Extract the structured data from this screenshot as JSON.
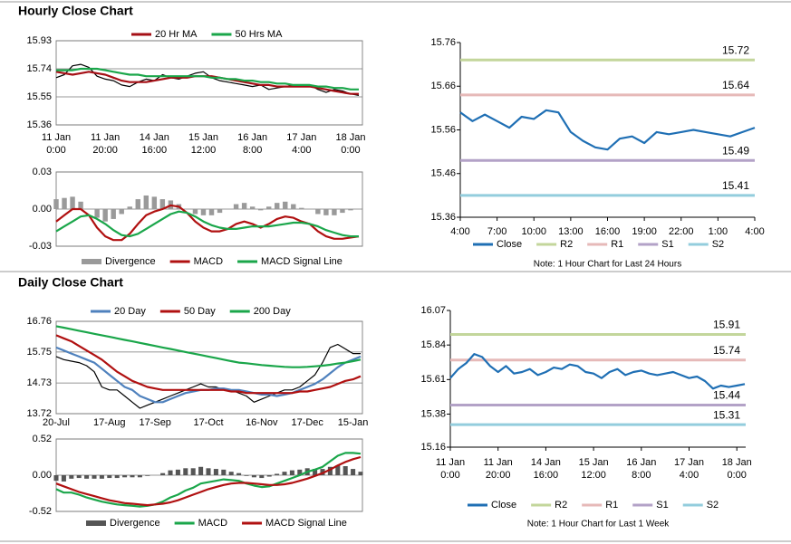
{
  "headings": [
    "Hourly Close Chart",
    "Daily Close Chart"
  ],
  "chart_data": [
    {
      "type": "line",
      "legend": "top",
      "grid": true,
      "categories": [
        [
          "11 Jan",
          "0:00"
        ],
        null,
        null,
        null,
        null,
        null,
        [
          "11 Jan",
          "20:00"
        ],
        null,
        null,
        null,
        null,
        null,
        [
          "14 Jan",
          "16:00"
        ],
        null,
        null,
        null,
        null,
        null,
        [
          "15 Jan",
          "12:00"
        ],
        null,
        null,
        null,
        null,
        null,
        [
          "16 Jan",
          "8:00"
        ],
        null,
        null,
        null,
        null,
        null,
        [
          "17 Jan",
          "4:00"
        ],
        null,
        null,
        null,
        null,
        null,
        [
          "18 Jan",
          "0:00"
        ],
        null
      ],
      "ylim": [
        15.36,
        15.93
      ],
      "yticks": [
        15.36,
        15.55,
        15.74,
        15.93
      ],
      "series": [
        {
          "color": "#000000",
          "kind": "line",
          "values": [
            15.68,
            15.7,
            15.76,
            15.77,
            15.75,
            15.69,
            15.67,
            15.66,
            15.63,
            15.62,
            15.65,
            15.67,
            15.66,
            15.7,
            15.68,
            15.67,
            15.69,
            15.71,
            15.72,
            15.68,
            15.66,
            15.65,
            15.64,
            15.63,
            15.62,
            15.63,
            15.6,
            15.61,
            15.62,
            15.63,
            15.62,
            15.63,
            15.6,
            15.58,
            15.6,
            15.59,
            15.57,
            15.56
          ]
        },
        {
          "name": "20 Hr MA",
          "color": "#a50f15",
          "kind": "line",
          "values": [
            15.72,
            15.71,
            15.7,
            15.71,
            15.72,
            15.71,
            15.7,
            15.68,
            15.66,
            15.65,
            15.65,
            15.65,
            15.66,
            15.67,
            15.68,
            15.68,
            15.68,
            15.69,
            15.69,
            15.69,
            15.68,
            15.67,
            15.66,
            15.65,
            15.64,
            15.63,
            15.63,
            15.62,
            15.62,
            15.62,
            15.62,
            15.62,
            15.61,
            15.6,
            15.59,
            15.58,
            15.57,
            15.57
          ]
        },
        {
          "name": "50 Hrs MA",
          "color": "#1aa64a",
          "kind": "line",
          "values": [
            15.73,
            15.73,
            15.73,
            15.74,
            15.74,
            15.74,
            15.73,
            15.72,
            15.71,
            15.7,
            15.7,
            15.69,
            15.69,
            15.69,
            15.69,
            15.69,
            15.69,
            15.69,
            15.69,
            15.68,
            15.68,
            15.67,
            15.67,
            15.66,
            15.66,
            15.65,
            15.65,
            15.64,
            15.64,
            15.63,
            15.63,
            15.63,
            15.62,
            15.62,
            15.61,
            15.61,
            15.6,
            15.6
          ]
        }
      ]
    },
    {
      "type": "line",
      "legend": "bottom",
      "grid": true,
      "ylim": [
        -0.03,
        0.03
      ],
      "yticks": [
        0.03,
        {
          "value": 0,
          "label": "0.00"
        },
        -0.03
      ],
      "series": [
        {
          "name": "Divergence",
          "color": "#9a9a9a",
          "kind": "bar",
          "values": [
            0.008,
            0.009,
            0.01,
            0.006,
            0,
            -0.007,
            -0.01,
            -0.008,
            -0.004,
            0.002,
            0.008,
            0.011,
            0.01,
            0.008,
            0.007,
            0.004,
            0,
            -0.004,
            -0.005,
            -0.005,
            -0.003,
            0,
            0.004,
            0.005,
            0.002,
            -0.001,
            0.002,
            0.005,
            0.006,
            0.004,
            0.001,
            0,
            -0.004,
            -0.005,
            -0.005,
            -0.003,
            -0.001,
            0
          ]
        },
        {
          "name": "MACD",
          "color": "#b01010",
          "kind": "line",
          "values": [
            -0.01,
            -0.005,
            0,
            0,
            -0.005,
            -0.015,
            -0.022,
            -0.025,
            -0.025,
            -0.02,
            -0.012,
            -0.005,
            -0.002,
            0,
            0.003,
            0.002,
            -0.003,
            -0.01,
            -0.015,
            -0.018,
            -0.018,
            -0.016,
            -0.012,
            -0.01,
            -0.012,
            -0.015,
            -0.012,
            -0.008,
            -0.006,
            -0.007,
            -0.01,
            -0.012,
            -0.018,
            -0.022,
            -0.024,
            -0.024,
            -0.023,
            -0.022
          ]
        },
        {
          "name": "MACD Signal Line",
          "color": "#1aa64a",
          "kind": "line",
          "values": [
            -0.018,
            -0.014,
            -0.01,
            -0.006,
            -0.005,
            -0.008,
            -0.012,
            -0.017,
            -0.021,
            -0.022,
            -0.02,
            -0.016,
            -0.012,
            -0.008,
            -0.004,
            -0.002,
            -0.003,
            -0.006,
            -0.01,
            -0.013,
            -0.015,
            -0.016,
            -0.016,
            -0.015,
            -0.014,
            -0.014,
            -0.014,
            -0.013,
            -0.012,
            -0.011,
            -0.011,
            -0.012,
            -0.014,
            -0.017,
            -0.019,
            -0.021,
            -0.022,
            -0.022
          ]
        }
      ]
    },
    {
      "type": "line",
      "legend": "bottom",
      "grid": false,
      "categories": [
        "4:00",
        null,
        null,
        "7:00",
        null,
        null,
        "10:00",
        null,
        null,
        "13:00",
        null,
        null,
        "16:00",
        null,
        null,
        "19:00",
        null,
        null,
        "22:00",
        null,
        null,
        "1:00",
        null,
        null,
        "4:00"
      ],
      "ylim": [
        15.36,
        15.76
      ],
      "yticks": [
        15.36,
        15.46,
        15.56,
        15.66,
        15.76
      ],
      "series": [
        {
          "name": "Close",
          "color": "#1f6fb4",
          "kind": "line",
          "values": [
            15.6,
            15.58,
            15.595,
            15.58,
            15.565,
            15.59,
            15.585,
            15.605,
            15.6,
            15.555,
            15.535,
            15.52,
            15.515,
            15.54,
            15.545,
            15.53,
            15.555,
            15.55,
            15.555,
            15.56,
            15.555,
            15.55,
            15.545,
            15.555,
            15.565
          ]
        }
      ],
      "levels": [
        {
          "name": "R2",
          "value": 15.72,
          "color": "#c3d69b"
        },
        {
          "name": "R1",
          "value": 15.64,
          "color": "#e6b9b8"
        },
        {
          "name": "S1",
          "value": 15.49,
          "color": "#b3a2c7"
        },
        {
          "name": "S2",
          "value": 15.41,
          "color": "#93cddd"
        }
      ],
      "note": "Note: 1 Hour Chart for Last 24 Hours"
    },
    {
      "type": "line",
      "legend": "top",
      "grid": true,
      "categories": [
        "20-Jul",
        null,
        null,
        null,
        null,
        null,
        null,
        "17-Aug",
        null,
        null,
        null,
        null,
        null,
        "17-Sep",
        null,
        null,
        null,
        null,
        null,
        null,
        "17-Oct",
        null,
        null,
        null,
        null,
        null,
        null,
        "16-Nov",
        null,
        null,
        null,
        null,
        null,
        "17-Dec",
        null,
        null,
        null,
        null,
        null,
        "15-Jan",
        null
      ],
      "ylim": [
        13.72,
        16.76
      ],
      "yticks": [
        13.72,
        14.73,
        15.75,
        16.76
      ],
      "series": [
        {
          "color": "#000000",
          "kind": "line",
          "values": [
            15.6,
            15.5,
            15.45,
            15.4,
            15.3,
            15.1,
            14.6,
            14.5,
            14.5,
            14.3,
            14.1,
            13.9,
            14.0,
            14.1,
            14.2,
            14.3,
            14.4,
            14.5,
            14.6,
            14.7,
            14.6,
            14.6,
            14.5,
            14.5,
            14.4,
            14.3,
            14.1,
            14.2,
            14.3,
            14.4,
            14.5,
            14.5,
            14.6,
            14.8,
            15.0,
            15.4,
            15.9,
            16.0,
            15.85,
            15.7,
            15.7
          ]
        },
        {
          "name": "20 Day",
          "color": "#4f81bd",
          "kind": "line",
          "values": [
            15.9,
            15.8,
            15.7,
            15.6,
            15.5,
            15.4,
            15.2,
            15.0,
            14.8,
            14.6,
            14.5,
            14.3,
            14.2,
            14.1,
            14.1,
            14.2,
            14.3,
            14.4,
            14.45,
            14.5,
            14.5,
            14.55,
            14.55,
            14.5,
            14.5,
            14.45,
            14.4,
            14.35,
            14.35,
            14.3,
            14.35,
            14.4,
            14.5,
            14.6,
            14.7,
            14.85,
            15.05,
            15.25,
            15.4,
            15.5,
            15.6
          ]
        },
        {
          "name": "50 Day",
          "color": "#b01010",
          "kind": "line",
          "values": [
            16.3,
            16.2,
            16.1,
            15.95,
            15.8,
            15.65,
            15.5,
            15.3,
            15.1,
            14.95,
            14.8,
            14.7,
            14.6,
            14.55,
            14.5,
            14.5,
            14.5,
            14.5,
            14.5,
            14.5,
            14.5,
            14.5,
            14.5,
            14.45,
            14.45,
            14.4,
            14.4,
            14.4,
            14.4,
            14.4,
            14.4,
            14.4,
            14.45,
            14.45,
            14.5,
            14.55,
            14.6,
            14.7,
            14.8,
            14.85,
            14.95
          ]
        },
        {
          "name": "200 Day",
          "color": "#1aa64a",
          "kind": "line",
          "values": [
            16.6,
            16.55,
            16.5,
            16.45,
            16.4,
            16.35,
            16.3,
            16.25,
            16.2,
            16.15,
            16.1,
            16.05,
            16.0,
            15.95,
            15.9,
            15.85,
            15.8,
            15.75,
            15.7,
            15.65,
            15.6,
            15.55,
            15.5,
            15.45,
            15.4,
            15.38,
            15.35,
            15.32,
            15.3,
            15.28,
            15.26,
            15.25,
            15.25,
            15.26,
            15.28,
            15.3,
            15.33,
            15.37,
            15.4,
            15.45,
            15.5
          ]
        }
      ]
    },
    {
      "type": "line",
      "legend": "bottom",
      "grid": true,
      "ylim": [
        -0.52,
        0.52
      ],
      "yticks": [
        0.52,
        {
          "value": 0,
          "label": "0.00"
        },
        -0.52
      ],
      "series": [
        {
          "name": "Divergence",
          "color": "#555555",
          "kind": "bar",
          "values": [
            -0.08,
            -0.09,
            -0.05,
            -0.04,
            -0.05,
            -0.05,
            -0.05,
            -0.04,
            -0.04,
            -0.03,
            -0.03,
            -0.03,
            -0.01,
            0,
            0.03,
            0.07,
            0.08,
            0.1,
            0.1,
            0.12,
            0.1,
            0.09,
            0.08,
            0.05,
            0.03,
            -0.01,
            -0.03,
            -0.04,
            -0.02,
            0.02,
            0.05,
            0.07,
            0.08,
            0.1,
            0.09,
            0.09,
            0.12,
            0.14,
            0.13,
            0.09,
            0.05
          ]
        },
        {
          "name": "MACD",
          "color": "#1aa64a",
          "kind": "line",
          "values": [
            -0.2,
            -0.25,
            -0.25,
            -0.28,
            -0.32,
            -0.35,
            -0.38,
            -0.4,
            -0.42,
            -0.43,
            -0.44,
            -0.45,
            -0.44,
            -0.42,
            -0.38,
            -0.32,
            -0.28,
            -0.22,
            -0.18,
            -0.12,
            -0.1,
            -0.08,
            -0.06,
            -0.07,
            -0.08,
            -0.12,
            -0.15,
            -0.17,
            -0.16,
            -0.12,
            -0.08,
            -0.04,
            0,
            0.05,
            0.08,
            0.12,
            0.2,
            0.28,
            0.32,
            0.32,
            0.31
          ]
        },
        {
          "name": "MACD Signal Line",
          "color": "#b01010",
          "kind": "line",
          "values": [
            -0.12,
            -0.16,
            -0.2,
            -0.24,
            -0.27,
            -0.3,
            -0.33,
            -0.36,
            -0.38,
            -0.4,
            -0.41,
            -0.42,
            -0.43,
            -0.42,
            -0.41,
            -0.39,
            -0.36,
            -0.32,
            -0.28,
            -0.24,
            -0.2,
            -0.17,
            -0.14,
            -0.12,
            -0.11,
            -0.11,
            -0.12,
            -0.13,
            -0.14,
            -0.14,
            -0.13,
            -0.11,
            -0.08,
            -0.05,
            -0.01,
            0.03,
            0.08,
            0.14,
            0.19,
            0.23,
            0.26
          ]
        }
      ]
    },
    {
      "type": "line",
      "legend": "bottom",
      "grid": false,
      "categories": [
        [
          "11 Jan",
          "0:00"
        ],
        null,
        null,
        null,
        null,
        null,
        [
          "11 Jan",
          "20:00"
        ],
        null,
        null,
        null,
        null,
        null,
        [
          "14 Jan",
          "16:00"
        ],
        null,
        null,
        null,
        null,
        null,
        [
          "15 Jan",
          "12:00"
        ],
        null,
        null,
        null,
        null,
        null,
        [
          "16 Jan",
          "8:00"
        ],
        null,
        null,
        null,
        null,
        null,
        [
          "17 Jan",
          "4:00"
        ],
        null,
        null,
        null,
        null,
        null,
        [
          "18 Jan",
          "0:00"
        ],
        null
      ],
      "ylim": [
        15.16,
        16.07
      ],
      "yticks": [
        15.16,
        15.38,
        15.61,
        15.84,
        16.07
      ],
      "series": [
        {
          "name": "Close",
          "color": "#1f6fb4",
          "kind": "line",
          "values": [
            15.62,
            15.68,
            15.72,
            15.78,
            15.76,
            15.7,
            15.66,
            15.7,
            15.65,
            15.66,
            15.68,
            15.64,
            15.66,
            15.69,
            15.68,
            15.71,
            15.7,
            15.66,
            15.65,
            15.62,
            15.66,
            15.68,
            15.64,
            15.66,
            15.67,
            15.65,
            15.64,
            15.65,
            15.66,
            15.64,
            15.62,
            15.63,
            15.6,
            15.55,
            15.57,
            15.56,
            15.57,
            15.58
          ]
        }
      ],
      "levels": [
        {
          "name": "R2",
          "value": 15.91,
          "color": "#c3d69b"
        },
        {
          "name": "R1",
          "value": 15.74,
          "color": "#e6b9b8"
        },
        {
          "name": "S1",
          "value": 15.44,
          "color": "#b3a2c7"
        },
        {
          "name": "S2",
          "value": 15.31,
          "color": "#93cddd"
        }
      ],
      "note": "Note: 1 Hour Chart for Last 1 Week"
    }
  ]
}
